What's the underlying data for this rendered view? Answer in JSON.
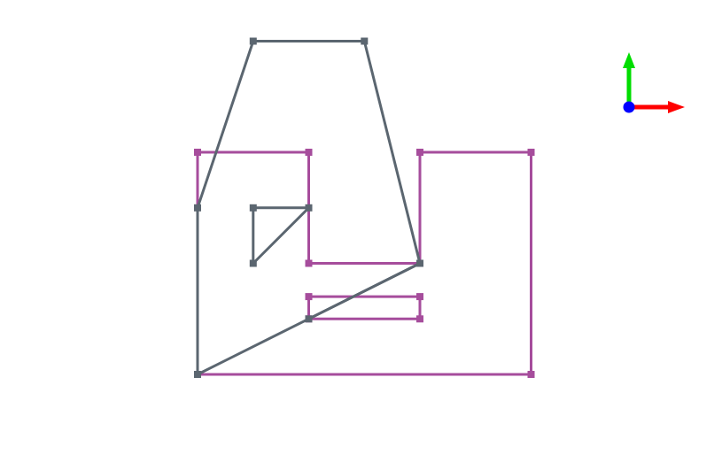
{
  "scene": {
    "background": "#ffffff",
    "colors": {
      "magenta_shape": "#a64d9c",
      "gray_shape": "#5b6670",
      "axis_x": "#ff0000",
      "axis_y": "#00dd00",
      "axis_origin": "#0000ff"
    },
    "shapes": [
      {
        "name": "outer-notched-outline",
        "color_key": "magenta_shape",
        "closed": true,
        "points": [
          [
            0,
            0
          ],
          [
            2,
            0
          ],
          [
            2,
            -2
          ],
          [
            4,
            -2
          ],
          [
            4,
            0
          ],
          [
            6,
            0
          ],
          [
            6,
            -4
          ],
          [
            0,
            -4
          ]
        ]
      },
      {
        "name": "inner-slot-rectangle",
        "color_key": "magenta_shape",
        "closed": true,
        "points": [
          [
            2,
            -2.6
          ],
          [
            4,
            -2.6
          ],
          [
            4,
            -3
          ],
          [
            2,
            -3
          ]
        ]
      },
      {
        "name": "gray-quad-outline",
        "color_key": "gray_shape",
        "closed": true,
        "points": [
          [
            1,
            2
          ],
          [
            3,
            2
          ],
          [
            4,
            -2
          ],
          [
            0,
            -4
          ],
          [
            0,
            -1
          ]
        ]
      },
      {
        "name": "gray-chord",
        "color_key": "gray_shape",
        "closed": false,
        "points": [
          [
            4,
            -2
          ],
          [
            2,
            -3
          ]
        ]
      },
      {
        "name": "small-triangle",
        "color_key": "gray_shape",
        "closed": true,
        "points": [
          [
            1,
            -1
          ],
          [
            2,
            -1
          ],
          [
            1,
            -2
          ]
        ]
      }
    ],
    "axis_triad": {
      "x_axis": "red",
      "y_axis": "green",
      "z_axis": "blue"
    }
  }
}
